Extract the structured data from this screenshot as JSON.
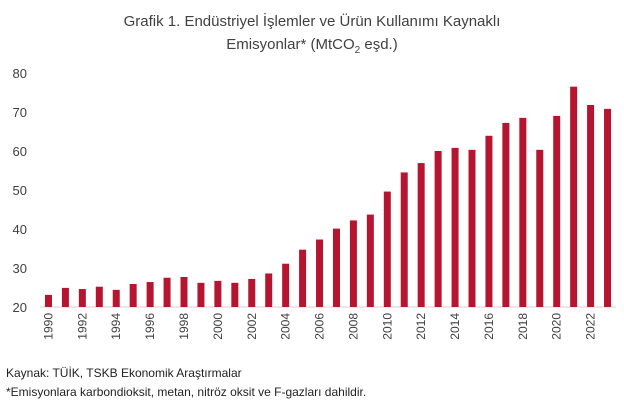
{
  "chart_data": {
    "type": "bar",
    "title_line1": "Grafik 1. Endüstriyel İşlemler ve Ürün Kullanımı Kaynaklı",
    "title_line2_pre": "Emisyonlar* (MtCO",
    "title_line2_sub": "2",
    "title_line2_post": " eşd.)",
    "xlabel": "",
    "ylabel": "",
    "ylim": [
      20,
      80
    ],
    "yticks": [
      20,
      30,
      40,
      50,
      60,
      70,
      80
    ],
    "grid": false,
    "bar_color": "#b5152f",
    "categories": [
      "1990",
      "1991",
      "1992",
      "1993",
      "1994",
      "1995",
      "1996",
      "1997",
      "1998",
      "1999",
      "2000",
      "2001",
      "2002",
      "2003",
      "2004",
      "2005",
      "2006",
      "2007",
      "2008",
      "2009",
      "2010",
      "2011",
      "2012",
      "2013",
      "2014",
      "2015",
      "2016",
      "2017",
      "2018",
      "2019",
      "2020",
      "2021",
      "2022",
      "2023"
    ],
    "xtick_labels": [
      "1990",
      "1992",
      "1994",
      "1996",
      "1998",
      "2000",
      "2002",
      "2004",
      "2006",
      "2008",
      "2010",
      "2012",
      "2014",
      "2016",
      "2018",
      "2020",
      "2022"
    ],
    "values": [
      23.1,
      24.9,
      24.6,
      25.2,
      24.4,
      25.9,
      26.4,
      27.5,
      27.7,
      26.2,
      26.7,
      26.2,
      27.2,
      28.6,
      31.1,
      34.7,
      37.3,
      40.1,
      42.2,
      43.7,
      49.6,
      54.5,
      56.9,
      60.0,
      60.8,
      60.3,
      63.9,
      67.2,
      68.5,
      60.3,
      69.0,
      76.5,
      71.8,
      70.8
    ]
  },
  "footer": {
    "source": "Kaynak: TÜİK, TSKB Ekonomik Araştırmalar",
    "note": "*Emisyonlara karbondioksit, metan, nitröz oksit ve F-gazları dahildir."
  }
}
